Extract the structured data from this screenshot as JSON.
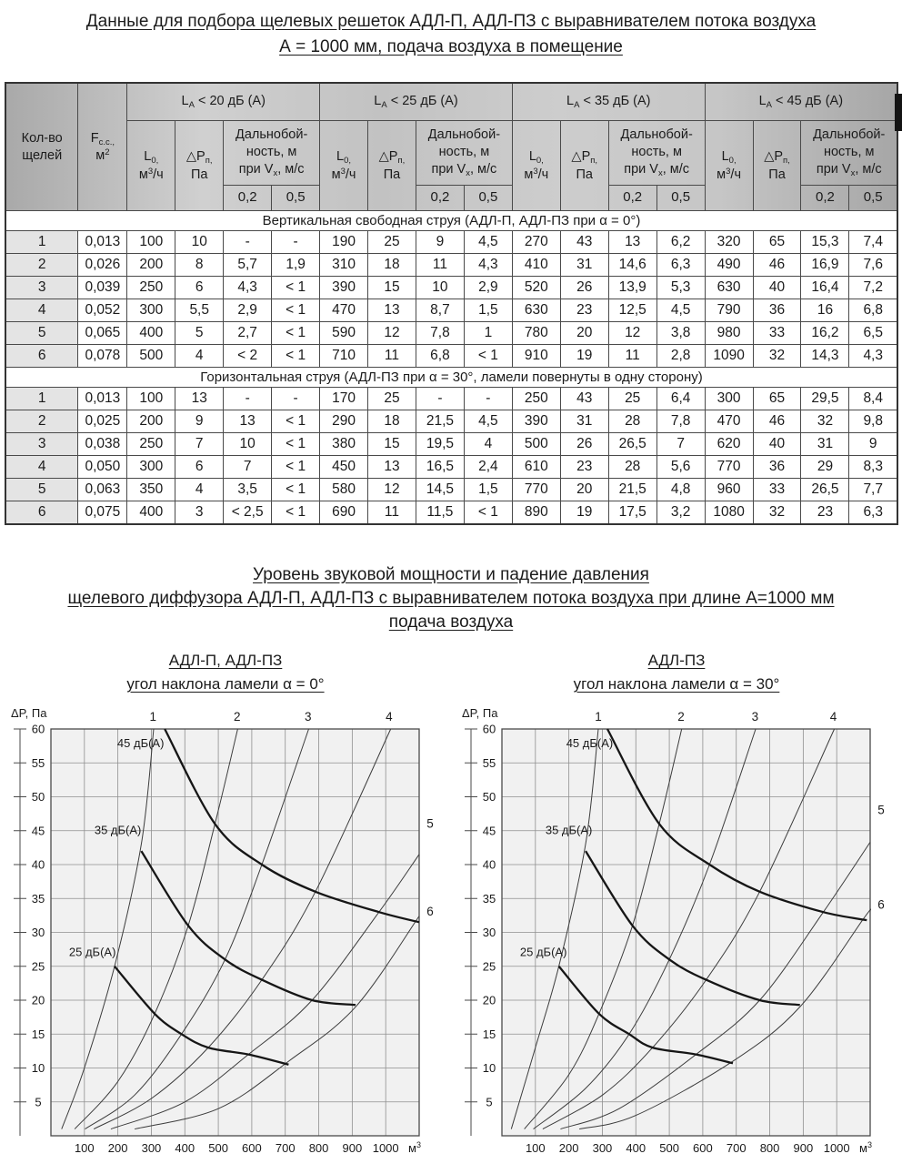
{
  "page": {
    "title_line1": "Данные для подбора щелевых решеток АДЛ-П, АДЛ-ПЗ с выравнивателем потока воздуха",
    "title_line2": "А = 1000 мм, подача воздуха в помещение",
    "mid_title_line1": "Уровень звуковой мощности и падение давления",
    "mid_title_line2": "щелевого диффузора АДЛ-П, АДЛ-ПЗ с выравнивателем потока воздуха при длине А=1000 мм",
    "mid_title_line3": "подача воздуха"
  },
  "table": {
    "row_header_parts": [
      [
        "t",
        "Кол-во"
      ],
      [
        "br"
      ],
      [
        "t",
        "щелей"
      ]
    ],
    "area_parts": [
      [
        "t",
        "F"
      ],
      [
        "sub",
        "с.с.,"
      ],
      [
        "br"
      ],
      [
        "t",
        "м"
      ],
      [
        "sup",
        "2"
      ]
    ],
    "groups": [
      {
        "parts": [
          [
            "t",
            "L"
          ],
          [
            "sub",
            "A"
          ],
          [
            "t",
            " < 20 дБ (А)"
          ]
        ]
      },
      {
        "parts": [
          [
            "t",
            "L"
          ],
          [
            "sub",
            "A"
          ],
          [
            "t",
            " < 25 дБ (А)"
          ]
        ]
      },
      {
        "parts": [
          [
            "t",
            "L"
          ],
          [
            "sub",
            "A"
          ],
          [
            "t",
            " < 35 дБ (А)"
          ]
        ]
      },
      {
        "parts": [
          [
            "t",
            "L"
          ],
          [
            "sub",
            "A"
          ],
          [
            "t",
            " < 45 дБ (А)"
          ]
        ]
      }
    ],
    "flow_parts": [
      [
        "t",
        "L"
      ],
      [
        "sub",
        "0,"
      ],
      [
        "br"
      ],
      [
        "t",
        "м"
      ],
      [
        "sup",
        "3"
      ],
      [
        "t",
        "/ч"
      ]
    ],
    "dp_parts": [
      [
        "t",
        "△P"
      ],
      [
        "sub",
        "п,"
      ],
      [
        "br"
      ],
      [
        "t",
        "Па"
      ]
    ],
    "range_parts": [
      [
        "t",
        "Дальнобой-"
      ],
      [
        "br"
      ],
      [
        "t",
        "ность, м"
      ],
      [
        "br"
      ],
      [
        "t",
        "при V"
      ],
      [
        "sub",
        "х"
      ],
      [
        "t",
        ", м/с"
      ]
    ],
    "speed_headers": [
      "0,2",
      "0,5"
    ],
    "sections": [
      {
        "title": "Вертикальная свободная струя (АДЛ-П, АДЛ-ПЗ при α = 0°)",
        "rows": [
          [
            "1",
            "0,013",
            "100",
            "10",
            "-",
            "-",
            "190",
            "25",
            "9",
            "4,5",
            "270",
            "43",
            "13",
            "6,2",
            "320",
            "65",
            "15,3",
            "7,4"
          ],
          [
            "2",
            "0,026",
            "200",
            "8",
            "5,7",
            "1,9",
            "310",
            "18",
            "11",
            "4,3",
            "410",
            "31",
            "14,6",
            "6,3",
            "490",
            "46",
            "16,9",
            "7,6"
          ],
          [
            "3",
            "0,039",
            "250",
            "6",
            "4,3",
            "< 1",
            "390",
            "15",
            "10",
            "2,9",
            "520",
            "26",
            "13,9",
            "5,3",
            "630",
            "40",
            "16,4",
            "7,2"
          ],
          [
            "4",
            "0,052",
            "300",
            "5,5",
            "2,9",
            "< 1",
            "470",
            "13",
            "8,7",
            "1,5",
            "630",
            "23",
            "12,5",
            "4,5",
            "790",
            "36",
            "16",
            "6,8"
          ],
          [
            "5",
            "0,065",
            "400",
            "5",
            "2,7",
            "< 1",
            "590",
            "12",
            "7,8",
            "1",
            "780",
            "20",
            "12",
            "3,8",
            "980",
            "33",
            "16,2",
            "6,5"
          ],
          [
            "6",
            "0,078",
            "500",
            "4",
            "< 2",
            "< 1",
            "710",
            "11",
            "6,8",
            "< 1",
            "910",
            "19",
            "11",
            "2,8",
            "1090",
            "32",
            "14,3",
            "4,3"
          ]
        ]
      },
      {
        "title": "Горизонтальная струя (АДЛ-ПЗ при α = 30°, ламели повернуты в одну сторону)",
        "rows": [
          [
            "1",
            "0,013",
            "100",
            "13",
            "-",
            "-",
            "170",
            "25",
            "-",
            "-",
            "250",
            "43",
            "25",
            "6,4",
            "300",
            "65",
            "29,5",
            "8,4"
          ],
          [
            "2",
            "0,025",
            "200",
            "9",
            "13",
            "< 1",
            "290",
            "18",
            "21,5",
            "4,5",
            "390",
            "31",
            "28",
            "7,8",
            "470",
            "46",
            "32",
            "9,8"
          ],
          [
            "3",
            "0,038",
            "250",
            "7",
            "10",
            "< 1",
            "380",
            "15",
            "19,5",
            "4",
            "500",
            "26",
            "26,5",
            "7",
            "620",
            "40",
            "31",
            "9"
          ],
          [
            "4",
            "0,050",
            "300",
            "6",
            "7",
            "< 1",
            "450",
            "13",
            "16,5",
            "2,4",
            "610",
            "23",
            "28",
            "5,6",
            "770",
            "36",
            "29",
            "8,3"
          ],
          [
            "5",
            "0,063",
            "350",
            "4",
            "3,5",
            "< 1",
            "580",
            "12",
            "14,5",
            "1,5",
            "770",
            "20",
            "21,5",
            "4,8",
            "960",
            "33",
            "26,5",
            "7,7"
          ],
          [
            "6",
            "0,075",
            "400",
            "3",
            "< 2,5",
            "< 1",
            "690",
            "11",
            "11,5",
            "< 1",
            "890",
            "19",
            "17,5",
            "3,2",
            "1080",
            "32",
            "23",
            "6,3"
          ]
        ]
      }
    ]
  },
  "chart_data": [
    {
      "type": "line",
      "title_line1": "АДЛ-П, АДЛ-ПЗ",
      "title_line2": "угол наклона ламели α = 0°",
      "ylabel": "ΔP, Па",
      "x_unit_base": "м",
      "x_unit_exp": "3",
      "xlim": [
        0,
        1100
      ],
      "ylim": [
        0,
        60
      ],
      "x_ticks": [
        100,
        200,
        300,
        400,
        500,
        600,
        700,
        800,
        900,
        1000
      ],
      "y_ticks": [
        5,
        10,
        15,
        20,
        25,
        30,
        35,
        40,
        45,
        50,
        55,
        60
      ],
      "grid": true,
      "slot_curves": [
        {
          "label": "1",
          "points": [
            [
              32,
              1
            ],
            [
              100,
              10
            ],
            [
              190,
              25
            ],
            [
              270,
              43
            ],
            [
              307,
              60
            ]
          ],
          "label_at": [
            305,
            63
          ]
        },
        {
          "label": "2",
          "points": [
            [
              71,
              1
            ],
            [
              200,
              8
            ],
            [
              310,
              18
            ],
            [
              410,
              31
            ],
            [
              490,
              46
            ],
            [
              558,
              60
            ]
          ],
          "label_at": [
            556,
            63
          ]
        },
        {
          "label": "3",
          "points": [
            [
              102,
              1
            ],
            [
              250,
              6
            ],
            [
              390,
              15
            ],
            [
              520,
              26
            ],
            [
              630,
              40
            ],
            [
              770,
              60
            ]
          ],
          "label_at": [
            768,
            63
          ]
        },
        {
          "label": "4",
          "points": [
            [
              128,
              1
            ],
            [
              300,
              5.5
            ],
            [
              470,
              13
            ],
            [
              630,
              23
            ],
            [
              790,
              36
            ],
            [
              1015,
              60
            ]
          ],
          "label_at": [
            1010,
            63
          ]
        },
        {
          "label": "5",
          "points": [
            [
              179,
              1
            ],
            [
              400,
              5
            ],
            [
              590,
              12
            ],
            [
              780,
              20
            ],
            [
              980,
              33
            ],
            [
              1100,
              41.5
            ]
          ],
          "label_at": [
            1150,
            46
          ]
        },
        {
          "label": "6",
          "points": [
            [
              250,
              1
            ],
            [
              500,
              4
            ],
            [
              710,
              11
            ],
            [
              910,
              19
            ],
            [
              1100,
              32.4
            ]
          ],
          "label_at": [
            1150,
            33
          ]
        }
      ],
      "noise_curves": [
        {
          "label": "25 дБ(А)",
          "points": [
            [
              190,
              25
            ],
            [
              310,
              18
            ],
            [
              390,
              15
            ],
            [
              470,
              13
            ],
            [
              590,
              12
            ],
            [
              710,
              10.5
            ]
          ],
          "label_at": [
            124,
            26.5
          ]
        },
        {
          "label": "35 дБ(А)",
          "points": [
            [
              270,
              42
            ],
            [
              410,
              31
            ],
            [
              520,
              26
            ],
            [
              630,
              23
            ],
            [
              780,
              20
            ],
            [
              910,
              19.3
            ]
          ],
          "label_at": [
            200,
            44.5
          ]
        },
        {
          "label": "45 дБ(А)",
          "points": [
            [
              340,
              60
            ],
            [
              490,
              46
            ],
            [
              630,
              40
            ],
            [
              790,
              36
            ],
            [
              980,
              33
            ],
            [
              1100,
              31.5
            ]
          ],
          "label_at": [
            268,
            57.3
          ]
        }
      ]
    },
    {
      "type": "line",
      "title_line1": "АДЛ-ПЗ",
      "title_line2": "угол наклона ламели α = 30°",
      "ylabel": "ΔP, Па",
      "x_unit_base": "м",
      "x_unit_exp": "3",
      "xlim": [
        0,
        1100
      ],
      "ylim": [
        0,
        60
      ],
      "x_ticks": [
        100,
        200,
        300,
        400,
        500,
        600,
        700,
        800,
        900,
        1000
      ],
      "y_ticks": [
        5,
        10,
        15,
        20,
        25,
        30,
        35,
        40,
        45,
        50,
        55,
        60
      ],
      "grid": true,
      "slot_curves": [
        {
          "label": "1",
          "points": [
            [
              28,
              1
            ],
            [
              100,
              13
            ],
            [
              170,
              25
            ],
            [
              250,
              43
            ],
            [
              288,
              60
            ]
          ],
          "label_at": [
            288,
            63
          ]
        },
        {
          "label": "2",
          "points": [
            [
              67,
              1
            ],
            [
              200,
              9
            ],
            [
              290,
              18
            ],
            [
              390,
              31
            ],
            [
              470,
              46
            ],
            [
              537,
              60
            ]
          ],
          "label_at": [
            535,
            63
          ]
        },
        {
          "label": "3",
          "points": [
            [
              94,
              1
            ],
            [
              250,
              7
            ],
            [
              380,
              15
            ],
            [
              500,
              26
            ],
            [
              620,
              40
            ],
            [
              758,
              60
            ]
          ],
          "label_at": [
            756,
            63
          ]
        },
        {
          "label": "4",
          "points": [
            [
              122,
              1
            ],
            [
              300,
              6
            ],
            [
              450,
              13
            ],
            [
              610,
              23
            ],
            [
              770,
              36
            ],
            [
              993,
              60
            ]
          ],
          "label_at": [
            990,
            63
          ]
        },
        {
          "label": "5",
          "points": [
            [
              175,
              1
            ],
            [
              350,
              4
            ],
            [
              580,
              12
            ],
            [
              770,
              20
            ],
            [
              960,
              33
            ],
            [
              1100,
              43.3
            ]
          ],
          "label_at": [
            1150,
            48
          ]
        },
        {
          "label": "6",
          "points": [
            [
              231,
              1
            ],
            [
              400,
              3
            ],
            [
              690,
              11
            ],
            [
              890,
              19
            ],
            [
              1080,
              32
            ],
            [
              1100,
              33.2
            ]
          ],
          "label_at": [
            1150,
            34
          ]
        }
      ],
      "noise_curves": [
        {
          "label": "25 дБ(А)",
          "points": [
            [
              170,
              25
            ],
            [
              290,
              18
            ],
            [
              380,
              15
            ],
            [
              450,
              13
            ],
            [
              580,
              12
            ],
            [
              690,
              10.7
            ]
          ],
          "label_at": [
            124,
            26.5
          ]
        },
        {
          "label": "35 дБ(А)",
          "points": [
            [
              250,
              42
            ],
            [
              390,
              31
            ],
            [
              500,
              26
            ],
            [
              610,
              23
            ],
            [
              770,
              20
            ],
            [
              890,
              19.3
            ]
          ],
          "label_at": [
            200,
            44.5
          ]
        },
        {
          "label": "45 дБ(А)",
          "points": [
            [
              315,
              60
            ],
            [
              470,
              46
            ],
            [
              620,
              40
            ],
            [
              770,
              36
            ],
            [
              960,
              33
            ],
            [
              1090,
              31.8
            ]
          ],
          "label_at": [
            262,
            57.3
          ]
        }
      ]
    }
  ],
  "colors": {
    "header_gray": "#c2c2c2",
    "row_head_gray": "#e4e4e4",
    "plot_bg": "#f1f1f1",
    "grid_line": "#8f8f8f",
    "curve_thin": "#3c3c3c",
    "curve_thick": "#161616",
    "text": "#1b1b1b"
  }
}
